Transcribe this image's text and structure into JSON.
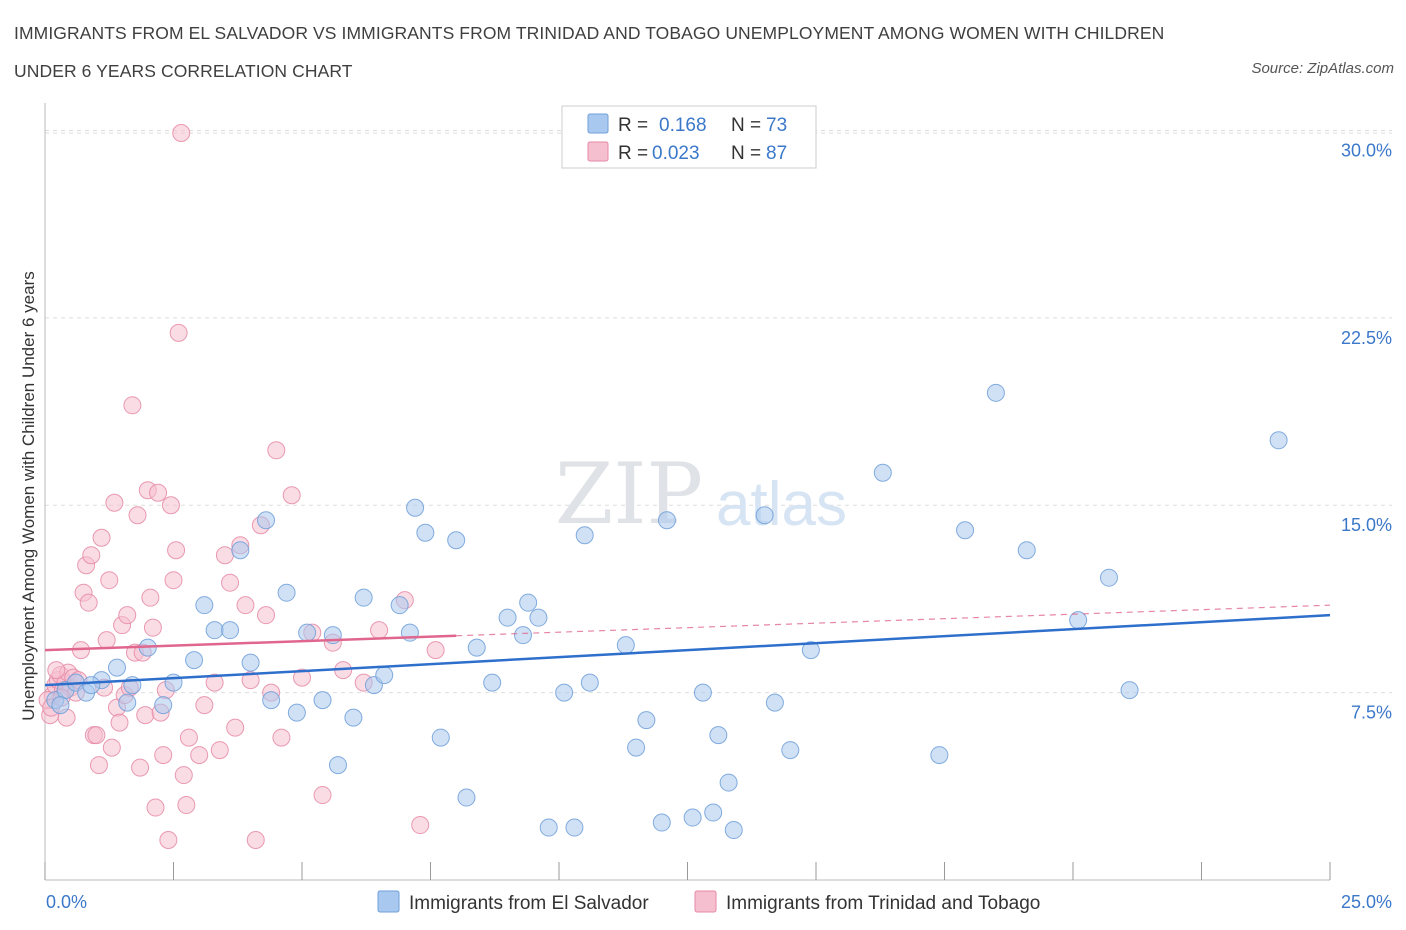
{
  "header": {
    "title": "IMMIGRANTS FROM EL SALVADOR VS IMMIGRANTS FROM TRINIDAD AND TOBAGO UNEMPLOYMENT AMONG WOMEN WITH CHILDREN UNDER 6 YEARS CORRELATION CHART",
    "source": "Source: ZipAtlas.com"
  },
  "watermark": {
    "zip": "ZIP",
    "atlas": "atlas"
  },
  "stats_legend": {
    "rows": [
      {
        "r_label": "R =",
        "r_value": "0.168",
        "n_label": "N =",
        "n_value": "73"
      },
      {
        "r_label": "R =",
        "r_value": "0.023",
        "n_label": "N =",
        "n_value": "87"
      }
    ]
  },
  "colors": {
    "blue_fill": "#a9c8ef",
    "blue_stroke": "#6f9fd8",
    "blue_line": "#2e6fcc",
    "pink_fill": "#f6bfd0",
    "pink_stroke": "#e58aa6",
    "pink_line": "#e0668e",
    "grid": "#dddddd",
    "tick_text": "#3b78c9"
  },
  "chart_data": {
    "type": "scatter",
    "title": "IMMIGRANTS FROM EL SALVADOR VS IMMIGRANTS FROM TRINIDAD AND TOBAGO UNEMPLOYMENT AMONG WOMEN WITH CHILDREN UNDER 6 YEARS CORRELATION CHART",
    "xlabel": "",
    "ylabel": "Unemployment Among Women with Children Under 6 years",
    "xlim": [
      0,
      25
    ],
    "ylim": [
      0,
      30.5
    ],
    "x_tick_labels": [
      "0.0%",
      "25.0%"
    ],
    "y_ticks": [
      7.5,
      15.0,
      22.5,
      30.0
    ],
    "y_tick_labels": [
      "7.5%",
      "15.0%",
      "22.5%",
      "30.0%"
    ],
    "grid": true,
    "legend_position": "top-center",
    "series": [
      {
        "name": "Immigrants from El Salvador",
        "color": "#a9c8ef",
        "r": 0.168,
        "n": 73,
        "trend": {
          "x0": 0,
          "y0": 7.8,
          "x1": 25,
          "y1": 10.6,
          "dashed_from": null
        },
        "points": [
          [
            0.2,
            7.2
          ],
          [
            0.4,
            7.6
          ],
          [
            0.6,
            7.9
          ],
          [
            0.8,
            7.5
          ],
          [
            1.1,
            8.0
          ],
          [
            1.4,
            8.5
          ],
          [
            1.6,
            7.1
          ],
          [
            1.7,
            7.8
          ],
          [
            2.0,
            9.3
          ],
          [
            2.3,
            7.0
          ],
          [
            2.5,
            7.9
          ],
          [
            2.9,
            8.8
          ],
          [
            3.1,
            11.0
          ],
          [
            3.3,
            10.0
          ],
          [
            3.6,
            10.0
          ],
          [
            3.8,
            13.2
          ],
          [
            4.0,
            8.7
          ],
          [
            4.3,
            14.4
          ],
          [
            4.4,
            7.2
          ],
          [
            4.7,
            11.5
          ],
          [
            4.9,
            6.7
          ],
          [
            5.1,
            9.9
          ],
          [
            5.4,
            7.2
          ],
          [
            5.6,
            9.8
          ],
          [
            5.7,
            4.6
          ],
          [
            6.0,
            6.5
          ],
          [
            6.2,
            11.3
          ],
          [
            6.4,
            7.8
          ],
          [
            6.6,
            8.2
          ],
          [
            6.9,
            11.0
          ],
          [
            7.1,
            9.9
          ],
          [
            7.2,
            14.9
          ],
          [
            7.4,
            13.9
          ],
          [
            7.7,
            5.7
          ],
          [
            8.0,
            13.6
          ],
          [
            8.2,
            3.3
          ],
          [
            8.4,
            9.3
          ],
          [
            8.7,
            7.9
          ],
          [
            9.0,
            10.5
          ],
          [
            9.3,
            9.8
          ],
          [
            9.4,
            11.1
          ],
          [
            9.6,
            10.5
          ],
          [
            9.8,
            2.1
          ],
          [
            10.1,
            7.5
          ],
          [
            10.3,
            2.1
          ],
          [
            10.5,
            13.8
          ],
          [
            10.6,
            7.9
          ],
          [
            11.3,
            9.4
          ],
          [
            11.5,
            5.3
          ],
          [
            11.7,
            6.4
          ],
          [
            12.0,
            2.3
          ],
          [
            12.1,
            14.4
          ],
          [
            12.6,
            2.5
          ],
          [
            12.8,
            7.5
          ],
          [
            13.0,
            2.7
          ],
          [
            13.1,
            5.8
          ],
          [
            13.3,
            3.9
          ],
          [
            13.4,
            2.0
          ],
          [
            14.0,
            14.6
          ],
          [
            14.2,
            7.1
          ],
          [
            14.5,
            5.2
          ],
          [
            14.9,
            9.2
          ],
          [
            16.3,
            16.3
          ],
          [
            17.4,
            5.0
          ],
          [
            17.9,
            14.0
          ],
          [
            18.5,
            19.5
          ],
          [
            19.1,
            13.2
          ],
          [
            20.1,
            10.4
          ],
          [
            20.7,
            12.1
          ],
          [
            21.1,
            7.6
          ],
          [
            24.0,
            17.6
          ],
          [
            0.3,
            7.0
          ],
          [
            0.9,
            7.8
          ]
        ]
      },
      {
        "name": "Immigrants from Trinidad and Tobago",
        "color": "#f6bfd0",
        "r": 0.023,
        "n": 87,
        "trend": {
          "x0": 0,
          "y0": 9.2,
          "x1": 25,
          "y1": 11.0,
          "dashed_from": 8.0
        },
        "points": [
          [
            0.1,
            6.6
          ],
          [
            0.15,
            7.4
          ],
          [
            0.2,
            7.8
          ],
          [
            0.25,
            8.0
          ],
          [
            0.3,
            8.2
          ],
          [
            0.35,
            7.6
          ],
          [
            0.4,
            7.9
          ],
          [
            0.45,
            8.3
          ],
          [
            0.5,
            7.7
          ],
          [
            0.55,
            8.1
          ],
          [
            0.6,
            7.5
          ],
          [
            0.65,
            8.0
          ],
          [
            0.7,
            9.2
          ],
          [
            0.75,
            11.5
          ],
          [
            0.8,
            12.6
          ],
          [
            0.85,
            11.1
          ],
          [
            0.9,
            13.0
          ],
          [
            0.95,
            5.8
          ],
          [
            1.0,
            5.8
          ],
          [
            1.05,
            4.6
          ],
          [
            1.1,
            13.7
          ],
          [
            1.15,
            7.7
          ],
          [
            1.2,
            9.6
          ],
          [
            1.25,
            12.0
          ],
          [
            1.3,
            5.3
          ],
          [
            1.35,
            15.1
          ],
          [
            1.4,
            6.9
          ],
          [
            1.45,
            6.3
          ],
          [
            1.5,
            10.2
          ],
          [
            1.55,
            7.4
          ],
          [
            1.6,
            10.6
          ],
          [
            1.65,
            7.7
          ],
          [
            1.7,
            19.0
          ],
          [
            1.75,
            9.1
          ],
          [
            1.8,
            14.6
          ],
          [
            1.85,
            4.5
          ],
          [
            1.9,
            9.1
          ],
          [
            1.95,
            6.6
          ],
          [
            2.0,
            15.6
          ],
          [
            2.05,
            11.3
          ],
          [
            2.1,
            10.1
          ],
          [
            2.15,
            2.9
          ],
          [
            2.2,
            15.5
          ],
          [
            2.25,
            6.7
          ],
          [
            2.3,
            5.0
          ],
          [
            2.35,
            7.6
          ],
          [
            2.4,
            1.6
          ],
          [
            2.45,
            15.0
          ],
          [
            2.5,
            12.0
          ],
          [
            2.55,
            13.2
          ],
          [
            2.6,
            21.9
          ],
          [
            2.65,
            29.9
          ],
          [
            2.7,
            4.2
          ],
          [
            2.75,
            3.0
          ],
          [
            2.8,
            5.7
          ],
          [
            3.0,
            5.0
          ],
          [
            3.1,
            7.0
          ],
          [
            3.3,
            7.9
          ],
          [
            3.4,
            5.2
          ],
          [
            3.5,
            13.0
          ],
          [
            3.6,
            11.9
          ],
          [
            3.7,
            6.1
          ],
          [
            3.8,
            13.4
          ],
          [
            3.9,
            11.0
          ],
          [
            4.0,
            8.0
          ],
          [
            4.1,
            1.6
          ],
          [
            4.2,
            14.2
          ],
          [
            4.3,
            10.6
          ],
          [
            4.4,
            7.5
          ],
          [
            4.5,
            17.2
          ],
          [
            4.6,
            5.7
          ],
          [
            4.8,
            15.4
          ],
          [
            5.0,
            8.1
          ],
          [
            5.2,
            9.9
          ],
          [
            5.4,
            3.4
          ],
          [
            5.6,
            9.5
          ],
          [
            5.8,
            8.4
          ],
          [
            6.2,
            7.9
          ],
          [
            6.5,
            10.0
          ],
          [
            7.0,
            11.2
          ],
          [
            7.3,
            2.2
          ],
          [
            7.6,
            9.2
          ],
          [
            0.05,
            7.2
          ],
          [
            0.12,
            6.9
          ],
          [
            0.22,
            8.4
          ],
          [
            0.32,
            7.3
          ],
          [
            0.42,
            6.5
          ]
        ]
      }
    ]
  },
  "bottom_legend": {
    "items": [
      {
        "label": "Immigrants from El Salvador"
      },
      {
        "label": "Immigrants from Trinidad and Tobago"
      }
    ]
  }
}
